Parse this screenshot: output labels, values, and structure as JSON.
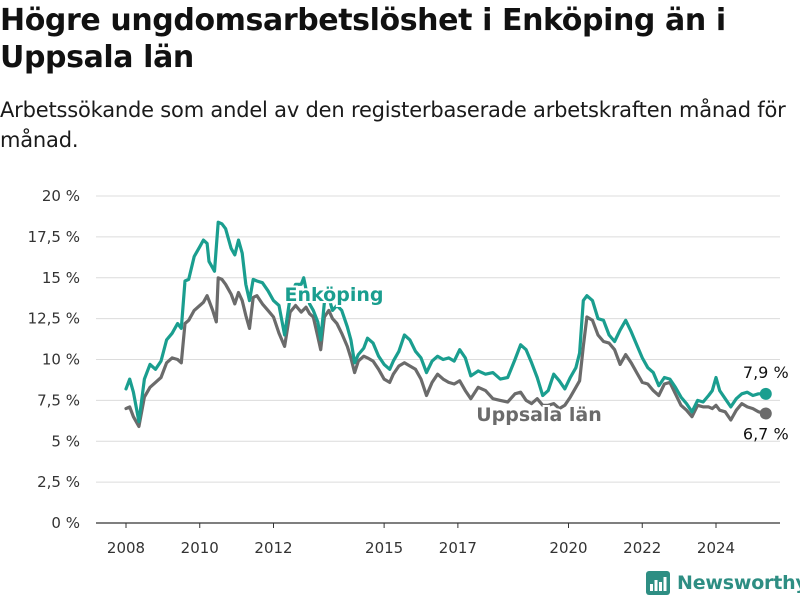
{
  "title": "Högre ungdomsarbetslöshet i Enköping än i Uppsala län",
  "subtitle": "Arbetssökande som andel av den registerbaserade arbetskraften månad för månad.",
  "brand": {
    "name": "Newsworthy",
    "icon": "bar-chart-logo-icon",
    "color": "#2e8e83"
  },
  "chart_data": {
    "type": "line",
    "title": "Högre ungdomsarbetslöshet i Enköping än i Uppsala län",
    "subtitle": "Arbetssökande som andel av den registerbaserade arbetskraften månad för månad.",
    "xlabel": "",
    "ylabel": "",
    "ylim": [
      0,
      20
    ],
    "xlim": [
      2007.6,
      2025.7
    ],
    "grid": true,
    "legend": "inline labels",
    "y_ticks": [
      0,
      2.5,
      5,
      7.5,
      10,
      12.5,
      15,
      17.5,
      20
    ],
    "y_tick_labels": [
      "0 %",
      "2,5 %",
      "5 %",
      "7,5 %",
      "10 %",
      "12,5 %",
      "15 %",
      "17,5 %",
      "20 %"
    ],
    "x_ticks": [
      2008,
      2010,
      2012,
      2015,
      2017,
      2020,
      2022,
      2024
    ],
    "x_tick_labels": [
      "2008",
      "2010",
      "2012",
      "2015",
      "2017",
      "2020",
      "2022",
      "2024"
    ],
    "series": [
      {
        "name": "Enköping",
        "color": "#1a9e8f",
        "end_label": "7,9 %",
        "points": [
          [
            2008.0,
            8.2
          ],
          [
            2008.1,
            8.8
          ],
          [
            2008.2,
            8.0
          ],
          [
            2008.35,
            6.2
          ],
          [
            2008.5,
            8.8
          ],
          [
            2008.65,
            9.7
          ],
          [
            2008.8,
            9.4
          ],
          [
            2008.95,
            9.9
          ],
          [
            2009.1,
            11.2
          ],
          [
            2009.25,
            11.6
          ],
          [
            2009.4,
            12.2
          ],
          [
            2009.5,
            11.9
          ],
          [
            2009.6,
            14.8
          ],
          [
            2009.7,
            14.9
          ],
          [
            2009.85,
            16.3
          ],
          [
            2010.0,
            16.9
          ],
          [
            2010.1,
            17.3
          ],
          [
            2010.2,
            17.1
          ],
          [
            2010.25,
            16.0
          ],
          [
            2010.35,
            15.6
          ],
          [
            2010.4,
            15.4
          ],
          [
            2010.5,
            18.4
          ],
          [
            2010.6,
            18.3
          ],
          [
            2010.7,
            18.0
          ],
          [
            2010.85,
            16.8
          ],
          [
            2010.95,
            16.4
          ],
          [
            2011.05,
            17.3
          ],
          [
            2011.15,
            16.5
          ],
          [
            2011.25,
            14.6
          ],
          [
            2011.35,
            13.6
          ],
          [
            2011.45,
            14.9
          ],
          [
            2011.55,
            14.8
          ],
          [
            2011.7,
            14.7
          ],
          [
            2011.85,
            14.2
          ],
          [
            2012.0,
            13.6
          ],
          [
            2012.15,
            13.3
          ],
          [
            2012.3,
            11.5
          ],
          [
            2012.45,
            13.8
          ],
          [
            2012.6,
            14.6
          ],
          [
            2012.75,
            14.6
          ],
          [
            2012.82,
            15.0
          ],
          [
            2012.88,
            14.3
          ],
          [
            2012.98,
            13.4
          ],
          [
            2013.08,
            13.0
          ],
          [
            2013.2,
            12.3
          ],
          [
            2013.28,
            11.2
          ],
          [
            2013.38,
            13.5
          ],
          [
            2013.5,
            13.8
          ],
          [
            2013.6,
            13.0
          ],
          [
            2013.72,
            13.3
          ],
          [
            2013.85,
            13.0
          ],
          [
            2014.0,
            12.0
          ],
          [
            2014.1,
            11.2
          ],
          [
            2014.2,
            9.8
          ],
          [
            2014.3,
            10.3
          ],
          [
            2014.45,
            10.7
          ],
          [
            2014.55,
            11.3
          ],
          [
            2014.7,
            11.0
          ],
          [
            2014.85,
            10.2
          ],
          [
            2015.0,
            9.7
          ],
          [
            2015.15,
            9.4
          ],
          [
            2015.25,
            9.9
          ],
          [
            2015.4,
            10.5
          ],
          [
            2015.55,
            11.5
          ],
          [
            2015.7,
            11.2
          ],
          [
            2015.85,
            10.5
          ],
          [
            2016.0,
            10.1
          ],
          [
            2016.15,
            9.2
          ],
          [
            2016.3,
            9.9
          ],
          [
            2016.45,
            10.2
          ],
          [
            2016.6,
            10.0
          ],
          [
            2016.75,
            10.1
          ],
          [
            2016.9,
            9.9
          ],
          [
            2017.05,
            10.6
          ],
          [
            2017.2,
            10.1
          ],
          [
            2017.35,
            9.0
          ],
          [
            2017.55,
            9.3
          ],
          [
            2017.75,
            9.1
          ],
          [
            2017.95,
            9.2
          ],
          [
            2018.15,
            8.8
          ],
          [
            2018.35,
            8.9
          ],
          [
            2018.55,
            10.0
          ],
          [
            2018.7,
            10.9
          ],
          [
            2018.85,
            10.6
          ],
          [
            2019.0,
            9.8
          ],
          [
            2019.15,
            8.9
          ],
          [
            2019.3,
            7.8
          ],
          [
            2019.45,
            8.1
          ],
          [
            2019.6,
            9.1
          ],
          [
            2019.75,
            8.7
          ],
          [
            2019.9,
            8.2
          ],
          [
            2020.05,
            8.9
          ],
          [
            2020.2,
            9.5
          ],
          [
            2020.3,
            10.4
          ],
          [
            2020.4,
            13.6
          ],
          [
            2020.5,
            13.9
          ],
          [
            2020.65,
            13.6
          ],
          [
            2020.8,
            12.5
          ],
          [
            2020.95,
            12.4
          ],
          [
            2021.1,
            11.5
          ],
          [
            2021.25,
            11.1
          ],
          [
            2021.4,
            11.8
          ],
          [
            2021.55,
            12.4
          ],
          [
            2021.7,
            11.7
          ],
          [
            2021.85,
            10.9
          ],
          [
            2022.0,
            10.1
          ],
          [
            2022.15,
            9.5
          ],
          [
            2022.3,
            9.2
          ],
          [
            2022.45,
            8.4
          ],
          [
            2022.6,
            8.9
          ],
          [
            2022.75,
            8.8
          ],
          [
            2022.9,
            8.3
          ],
          [
            2023.05,
            7.7
          ],
          [
            2023.2,
            7.3
          ],
          [
            2023.35,
            6.8
          ],
          [
            2023.5,
            7.5
          ],
          [
            2023.65,
            7.4
          ],
          [
            2023.8,
            7.8
          ],
          [
            2023.9,
            8.1
          ],
          [
            2024.0,
            8.9
          ],
          [
            2024.1,
            8.1
          ],
          [
            2024.25,
            7.6
          ],
          [
            2024.4,
            7.1
          ],
          [
            2024.55,
            7.6
          ],
          [
            2024.7,
            7.9
          ],
          [
            2024.85,
            8.0
          ],
          [
            2025.0,
            7.8
          ],
          [
            2025.15,
            7.9
          ],
          [
            2025.35,
            7.9
          ]
        ]
      },
      {
        "name": "Uppsala län",
        "color": "#6b6b6b",
        "end_label": "6,7 %",
        "points": [
          [
            2008.0,
            7.0
          ],
          [
            2008.1,
            7.1
          ],
          [
            2008.2,
            6.5
          ],
          [
            2008.35,
            5.9
          ],
          [
            2008.5,
            7.7
          ],
          [
            2008.65,
            8.3
          ],
          [
            2008.8,
            8.6
          ],
          [
            2008.95,
            8.9
          ],
          [
            2009.1,
            9.8
          ],
          [
            2009.25,
            10.1
          ],
          [
            2009.4,
            10.0
          ],
          [
            2009.5,
            9.8
          ],
          [
            2009.6,
            12.2
          ],
          [
            2009.7,
            12.4
          ],
          [
            2009.85,
            13.0
          ],
          [
            2010.0,
            13.3
          ],
          [
            2010.1,
            13.5
          ],
          [
            2010.2,
            13.9
          ],
          [
            2010.25,
            13.6
          ],
          [
            2010.35,
            13.0
          ],
          [
            2010.45,
            12.3
          ],
          [
            2010.5,
            15.0
          ],
          [
            2010.6,
            14.9
          ],
          [
            2010.7,
            14.6
          ],
          [
            2010.85,
            14.0
          ],
          [
            2010.95,
            13.4
          ],
          [
            2011.05,
            14.1
          ],
          [
            2011.15,
            13.6
          ],
          [
            2011.25,
            12.7
          ],
          [
            2011.35,
            11.9
          ],
          [
            2011.45,
            13.8
          ],
          [
            2011.55,
            13.9
          ],
          [
            2011.7,
            13.4
          ],
          [
            2011.85,
            13.0
          ],
          [
            2012.0,
            12.6
          ],
          [
            2012.15,
            11.6
          ],
          [
            2012.3,
            10.8
          ],
          [
            2012.45,
            12.9
          ],
          [
            2012.6,
            13.3
          ],
          [
            2012.75,
            12.9
          ],
          [
            2012.88,
            13.2
          ],
          [
            2012.98,
            12.8
          ],
          [
            2013.08,
            12.6
          ],
          [
            2013.2,
            11.4
          ],
          [
            2013.28,
            10.6
          ],
          [
            2013.38,
            12.6
          ],
          [
            2013.5,
            13.0
          ],
          [
            2013.6,
            12.5
          ],
          [
            2013.72,
            12.2
          ],
          [
            2013.85,
            11.6
          ],
          [
            2014.0,
            10.8
          ],
          [
            2014.1,
            10.1
          ],
          [
            2014.2,
            9.2
          ],
          [
            2014.3,
            9.9
          ],
          [
            2014.45,
            10.2
          ],
          [
            2014.55,
            10.1
          ],
          [
            2014.7,
            9.9
          ],
          [
            2014.85,
            9.4
          ],
          [
            2015.0,
            8.8
          ],
          [
            2015.15,
            8.6
          ],
          [
            2015.25,
            9.1
          ],
          [
            2015.4,
            9.6
          ],
          [
            2015.55,
            9.8
          ],
          [
            2015.7,
            9.6
          ],
          [
            2015.85,
            9.4
          ],
          [
            2016.0,
            8.8
          ],
          [
            2016.15,
            7.8
          ],
          [
            2016.3,
            8.6
          ],
          [
            2016.45,
            9.1
          ],
          [
            2016.6,
            8.8
          ],
          [
            2016.75,
            8.6
          ],
          [
            2016.9,
            8.5
          ],
          [
            2017.05,
            8.7
          ],
          [
            2017.2,
            8.1
          ],
          [
            2017.35,
            7.6
          ],
          [
            2017.55,
            8.3
          ],
          [
            2017.75,
            8.1
          ],
          [
            2017.95,
            7.6
          ],
          [
            2018.15,
            7.5
          ],
          [
            2018.35,
            7.4
          ],
          [
            2018.55,
            7.9
          ],
          [
            2018.7,
            8.0
          ],
          [
            2018.85,
            7.5
          ],
          [
            2019.0,
            7.3
          ],
          [
            2019.15,
            7.6
          ],
          [
            2019.3,
            7.2
          ],
          [
            2019.45,
            7.2
          ],
          [
            2019.6,
            7.3
          ],
          [
            2019.75,
            7.0
          ],
          [
            2019.9,
            7.2
          ],
          [
            2020.05,
            7.7
          ],
          [
            2020.2,
            8.3
          ],
          [
            2020.3,
            8.7
          ],
          [
            2020.4,
            10.8
          ],
          [
            2020.5,
            12.6
          ],
          [
            2020.65,
            12.4
          ],
          [
            2020.8,
            11.5
          ],
          [
            2020.95,
            11.1
          ],
          [
            2021.1,
            11.0
          ],
          [
            2021.25,
            10.6
          ],
          [
            2021.4,
            9.7
          ],
          [
            2021.55,
            10.3
          ],
          [
            2021.7,
            9.8
          ],
          [
            2021.85,
            9.2
          ],
          [
            2022.0,
            8.6
          ],
          [
            2022.15,
            8.5
          ],
          [
            2022.3,
            8.1
          ],
          [
            2022.45,
            7.8
          ],
          [
            2022.6,
            8.5
          ],
          [
            2022.75,
            8.6
          ],
          [
            2022.9,
            7.9
          ],
          [
            2023.05,
            7.2
          ],
          [
            2023.2,
            6.9
          ],
          [
            2023.35,
            6.5
          ],
          [
            2023.5,
            7.2
          ],
          [
            2023.65,
            7.1
          ],
          [
            2023.8,
            7.1
          ],
          [
            2023.9,
            7.0
          ],
          [
            2024.0,
            7.2
          ],
          [
            2024.1,
            6.9
          ],
          [
            2024.25,
            6.8
          ],
          [
            2024.4,
            6.3
          ],
          [
            2024.55,
            6.9
          ],
          [
            2024.7,
            7.3
          ],
          [
            2024.85,
            7.1
          ],
          [
            2025.0,
            7.0
          ],
          [
            2025.15,
            6.8
          ],
          [
            2025.35,
            6.7
          ]
        ]
      }
    ]
  }
}
